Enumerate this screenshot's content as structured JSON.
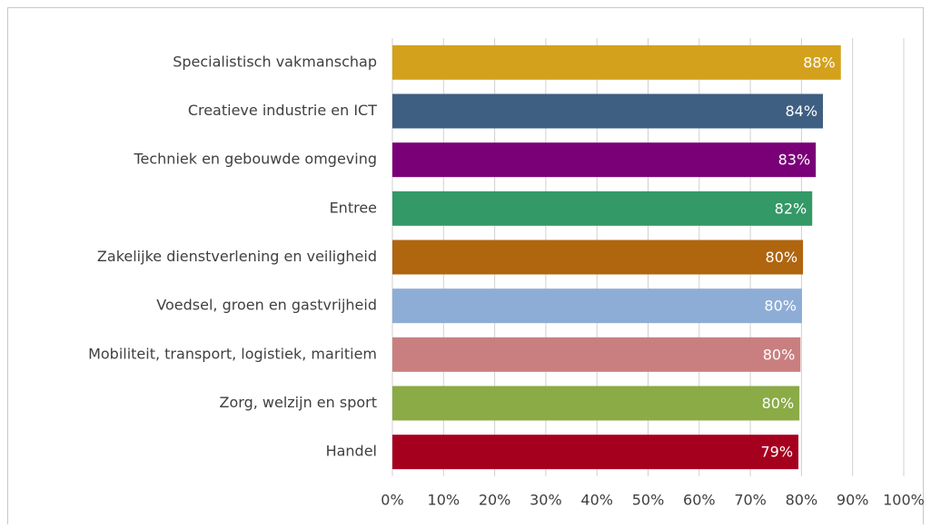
{
  "chart_data": {
    "type": "barh",
    "categories": [
      "Specialistisch vakmanschap",
      "Creatieve industrie en ICT",
      "Techniek en gebouwde omgeving",
      "Entree",
      "Zakelijke dienstverlening en veiligheid",
      "Voedsel, groen en gastvrijheid",
      "Mobiliteit, transport, logistiek, maritiem",
      "Zorg, welzijn en sport",
      "Handel"
    ],
    "values": [
      87.7,
      84.2,
      82.8,
      82.1,
      80.3,
      80.1,
      79.8,
      79.6,
      79.4
    ],
    "value_labels": [
      "88%",
      "84%",
      "83%",
      "82%",
      "80%",
      "80%",
      "80%",
      "80%",
      "79%"
    ],
    "colors": [
      "#d4a11c",
      "#3e5f82",
      "#7a0077",
      "#339966",
      "#b0650f",
      "#8eadd6",
      "#c97f7f",
      "#8aab46",
      "#a6001f"
    ],
    "xlim": [
      0,
      100
    ],
    "xticks": [
      {
        "value": 0,
        "label": "0%"
      },
      {
        "value": 10,
        "label": "10%"
      },
      {
        "value": 20,
        "label": "20%"
      },
      {
        "value": 30,
        "label": "30%"
      },
      {
        "value": 40,
        "label": "40%"
      },
      {
        "value": 50,
        "label": "50%"
      },
      {
        "value": 60,
        "label": "60%"
      },
      {
        "value": 70,
        "label": "70%"
      },
      {
        "value": 80,
        "label": "80%"
      },
      {
        "value": 90,
        "label": "90%"
      },
      {
        "value": 100,
        "label": "100%"
      }
    ],
    "grid": true
  }
}
